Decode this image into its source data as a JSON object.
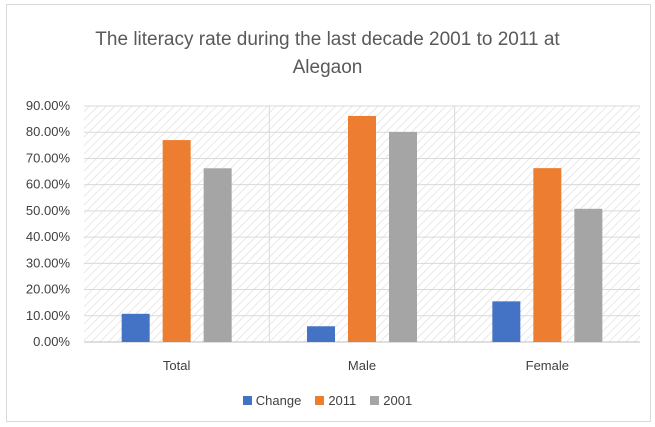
{
  "chart_data": {
    "type": "bar",
    "title_line1": "The literacy rate during the last decade 2001 to 2011 at",
    "title_line2": "Alegaon",
    "categories": [
      "Total",
      "Male",
      "Female"
    ],
    "series": [
      {
        "name": "Change",
        "color": "#4472c4",
        "values": [
          10.75,
          6.0,
          15.5
        ]
      },
      {
        "name": "2011",
        "color": "#ed7d31",
        "values": [
          77.0,
          86.2,
          66.3
        ]
      },
      {
        "name": "2001",
        "color": "#a5a5a5",
        "values": [
          66.25,
          80.1,
          50.8
        ]
      }
    ],
    "ylim": [
      0,
      90
    ],
    "y_ticks": [
      "0.00%",
      "10.00%",
      "20.00%",
      "30.00%",
      "40.00%",
      "50.00%",
      "60.00%",
      "70.00%",
      "80.00%",
      "90.00%"
    ],
    "y_tick_values": [
      0,
      10,
      20,
      30,
      40,
      50,
      60,
      70,
      80,
      90
    ],
    "legend_position": "bottom",
    "grid": true,
    "plot_background": "diagonal-hatch"
  }
}
